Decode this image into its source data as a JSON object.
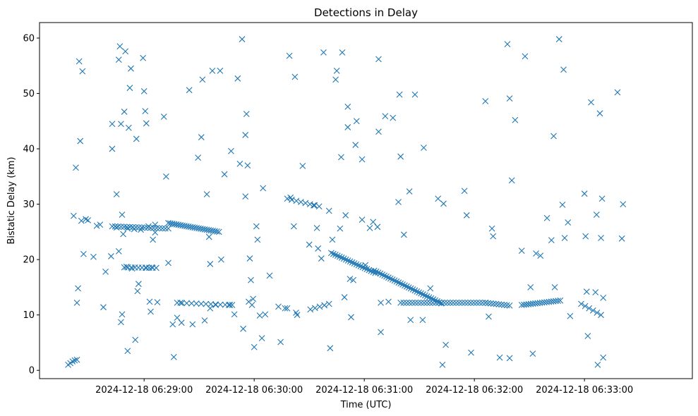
{
  "chart_data": {
    "type": "scatter",
    "title": "Detections in Delay",
    "xlabel": "Time (UTC)",
    "ylabel": "Bistatic Delay (km)",
    "marker": "x",
    "color": "#1f77b4",
    "x_unit": "minutes after 2024-12-18 06:28:00",
    "xlim": [
      27.55,
      33.48
    ],
    "ylim": [
      -1.5,
      62.8
    ],
    "xticks": [
      {
        "value": 28.5,
        "label": "2024-12-18 06:29:00"
      },
      {
        "value": 29.5,
        "label": "2024-12-18 06:30:00"
      },
      {
        "value": 30.5,
        "label": "2024-12-18 06:31:00"
      },
      {
        "value": 31.5,
        "label": "2024-12-18 06:32:00"
      },
      {
        "value": 32.5,
        "label": "2024-12-18 06:33:00"
      }
    ],
    "yticks": [
      {
        "value": 0,
        "label": "0"
      },
      {
        "value": 10,
        "label": "10"
      },
      {
        "value": 20,
        "label": "20"
      },
      {
        "value": 30,
        "label": "30"
      },
      {
        "value": 40,
        "label": "40"
      },
      {
        "value": 50,
        "label": "50"
      },
      {
        "value": 60,
        "label": "60"
      }
    ],
    "points": [
      [
        27.81,
        1.0
      ],
      [
        27.83,
        1.3
      ],
      [
        27.85,
        1.6
      ],
      [
        27.87,
        1.8
      ],
      [
        27.89,
        1.9
      ],
      [
        27.86,
        27.9
      ],
      [
        27.88,
        36.6
      ],
      [
        27.89,
        12.2
      ],
      [
        27.9,
        14.8
      ],
      [
        27.91,
        55.8
      ],
      [
        27.92,
        41.4
      ],
      [
        27.93,
        27.0
      ],
      [
        27.94,
        54.0
      ],
      [
        27.95,
        21.0
      ],
      [
        27.97,
        27.3
      ],
      [
        27.99,
        27.1
      ],
      [
        28.04,
        20.5
      ],
      [
        28.07,
        26.1
      ],
      [
        28.1,
        26.3
      ],
      [
        28.13,
        11.4
      ],
      [
        28.15,
        17.8
      ],
      [
        28.2,
        20.6
      ],
      [
        28.21,
        44.5
      ],
      [
        28.25,
        25.8
      ],
      [
        28.27,
        56.1
      ],
      [
        28.28,
        58.5
      ],
      [
        28.29,
        44.5
      ],
      [
        28.3,
        28.1
      ],
      [
        28.31,
        24.6
      ],
      [
        28.32,
        46.7
      ],
      [
        28.33,
        57.6
      ],
      [
        28.34,
        18.7
      ],
      [
        28.35,
        25.6
      ],
      [
        28.36,
        43.8
      ],
      [
        28.37,
        51.0
      ],
      [
        28.38,
        54.5
      ],
      [
        28.39,
        18.4
      ],
      [
        28.41,
        25.5
      ],
      [
        28.43,
        41.8
      ],
      [
        28.44,
        14.3
      ],
      [
        28.45,
        15.6
      ],
      [
        28.47,
        25.4
      ],
      [
        28.49,
        56.4
      ],
      [
        28.5,
        50.4
      ],
      [
        28.51,
        46.8
      ],
      [
        28.52,
        44.6
      ],
      [
        28.54,
        26.0
      ],
      [
        28.55,
        12.4
      ],
      [
        28.56,
        10.6
      ],
      [
        28.58,
        23.6
      ],
      [
        28.6,
        26.3
      ],
      [
        28.62,
        12.3
      ],
      [
        28.68,
        45.8
      ],
      [
        28.7,
        35.0
      ],
      [
        28.72,
        19.4
      ],
      [
        28.76,
        8.3
      ],
      [
        28.77,
        2.4
      ],
      [
        28.8,
        9.5
      ],
      [
        28.83,
        12.2
      ],
      [
        28.84,
        8.6
      ],
      [
        28.91,
        50.6
      ],
      [
        28.94,
        8.3
      ],
      [
        28.99,
        38.4
      ],
      [
        29.02,
        42.1
      ],
      [
        29.03,
        52.5
      ],
      [
        29.05,
        9.0
      ],
      [
        29.07,
        31.8
      ],
      [
        29.09,
        24.1
      ],
      [
        29.1,
        19.2
      ],
      [
        29.12,
        54.1
      ],
      [
        29.15,
        11.8
      ],
      [
        29.19,
        54.1
      ],
      [
        29.2,
        20.0
      ],
      [
        29.23,
        35.4
      ],
      [
        29.27,
        11.8
      ],
      [
        29.29,
        39.6
      ],
      [
        29.32,
        10.1
      ],
      [
        29.35,
        52.7
      ],
      [
        29.37,
        37.3
      ],
      [
        29.39,
        59.8
      ],
      [
        29.4,
        7.5
      ],
      [
        29.42,
        31.4
      ],
      [
        29.42,
        42.5
      ],
      [
        29.43,
        46.3
      ],
      [
        29.44,
        37.0
      ],
      [
        29.46,
        20.2
      ],
      [
        29.47,
        16.3
      ],
      [
        29.48,
        11.8
      ],
      [
        29.49,
        12.9
      ],
      [
        29.5,
        4.2
      ],
      [
        29.52,
        26.0
      ],
      [
        29.53,
        23.6
      ],
      [
        29.55,
        9.9
      ],
      [
        29.57,
        5.8
      ],
      [
        29.58,
        32.9
      ],
      [
        29.6,
        10.1
      ],
      [
        29.64,
        17.1
      ],
      [
        29.72,
        11.5
      ],
      [
        29.74,
        5.1
      ],
      [
        29.8,
        11.2
      ],
      [
        29.82,
        56.8
      ],
      [
        29.83,
        31.2
      ],
      [
        29.86,
        26.0
      ],
      [
        29.87,
        53.0
      ],
      [
        29.89,
        10.0
      ],
      [
        29.94,
        36.9
      ],
      [
        30.0,
        22.7
      ],
      [
        30.04,
        29.8
      ],
      [
        30.07,
        25.7
      ],
      [
        30.08,
        22.0
      ],
      [
        30.11,
        20.2
      ],
      [
        30.13,
        57.4
      ],
      [
        30.18,
        28.8
      ],
      [
        30.19,
        4.0
      ],
      [
        30.21,
        23.6
      ],
      [
        30.24,
        52.5
      ],
      [
        30.25,
        54.1
      ],
      [
        30.28,
        25.6
      ],
      [
        30.29,
        38.5
      ],
      [
        30.3,
        57.4
      ],
      [
        30.32,
        13.2
      ],
      [
        30.33,
        28.0
      ],
      [
        30.35,
        47.6
      ],
      [
        30.35,
        43.9
      ],
      [
        30.37,
        16.5
      ],
      [
        30.38,
        9.6
      ],
      [
        30.4,
        16.3
      ],
      [
        30.42,
        40.7
      ],
      [
        30.43,
        45.0
      ],
      [
        30.48,
        27.2
      ],
      [
        30.48,
        38.1
      ],
      [
        30.51,
        19.0
      ],
      [
        30.55,
        25.7
      ],
      [
        30.58,
        26.8
      ],
      [
        30.63,
        56.2
      ],
      [
        30.63,
        43.1
      ],
      [
        30.62,
        25.9
      ],
      [
        30.65,
        12.2
      ],
      [
        30.65,
        6.9
      ],
      [
        30.69,
        45.9
      ],
      [
        30.72,
        12.4
      ],
      [
        30.76,
        45.6
      ],
      [
        30.81,
        30.4
      ],
      [
        30.82,
        49.8
      ],
      [
        30.83,
        38.6
      ],
      [
        30.86,
        24.5
      ],
      [
        30.91,
        32.3
      ],
      [
        30.92,
        9.1
      ],
      [
        30.96,
        49.8
      ],
      [
        31.03,
        9.1
      ],
      [
        31.04,
        40.2
      ],
      [
        31.1,
        14.8
      ],
      [
        31.17,
        31.0
      ],
      [
        31.21,
        1.0
      ],
      [
        31.22,
        30.1
      ],
      [
        31.24,
        4.6
      ],
      [
        31.41,
        32.4
      ],
      [
        31.43,
        28.0
      ],
      [
        31.47,
        3.2
      ],
      [
        31.6,
        48.6
      ],
      [
        31.63,
        9.7
      ],
      [
        31.66,
        25.6
      ],
      [
        31.67,
        24.2
      ],
      [
        31.73,
        2.3
      ],
      [
        31.8,
        58.9
      ],
      [
        31.82,
        49.1
      ],
      [
        31.82,
        2.2
      ],
      [
        31.84,
        34.3
      ],
      [
        31.87,
        45.2
      ],
      [
        31.93,
        21.6
      ],
      [
        31.96,
        56.7
      ],
      [
        32.01,
        15.0
      ],
      [
        32.03,
        3.0
      ],
      [
        32.06,
        21.1
      ],
      [
        32.1,
        20.7
      ],
      [
        32.16,
        27.5
      ],
      [
        32.2,
        23.5
      ],
      [
        32.22,
        42.3
      ],
      [
        32.23,
        15.0
      ],
      [
        32.27,
        59.8
      ],
      [
        32.31,
        54.3
      ],
      [
        32.3,
        29.9
      ],
      [
        32.32,
        23.9
      ],
      [
        32.35,
        26.7
      ],
      [
        32.37,
        9.8
      ],
      [
        32.5,
        31.9
      ],
      [
        32.51,
        24.2
      ],
      [
        32.52,
        14.2
      ],
      [
        32.53,
        6.2
      ],
      [
        32.56,
        48.4
      ],
      [
        32.6,
        14.1
      ],
      [
        32.61,
        28.1
      ],
      [
        32.62,
        1.0
      ],
      [
        32.64,
        46.4
      ],
      [
        32.65,
        23.9
      ],
      [
        32.66,
        31.0
      ],
      [
        32.67,
        2.3
      ],
      [
        32.67,
        13.1
      ],
      [
        32.8,
        50.2
      ],
      [
        32.84,
        23.8
      ],
      [
        32.85,
        30.0
      ],
      [
        28.21,
        40.0
      ],
      [
        28.25,
        31.8
      ],
      [
        28.27,
        21.5
      ],
      [
        28.3,
        10.1
      ],
      [
        28.35,
        3.5
      ],
      [
        28.29,
        8.7
      ],
      [
        28.42,
        5.5
      ],
      [
        28.52,
        18.5
      ],
      [
        28.57,
        18.6
      ],
      [
        28.6,
        24.9
      ],
      [
        29.1,
        11.2
      ],
      [
        29.3,
        11.8
      ],
      [
        29.45,
        12.4
      ],
      [
        29.78,
        11.2
      ],
      [
        29.88,
        10.4
      ]
    ],
    "track_segments": [
      {
        "x0": 28.21,
        "x1": 28.72,
        "y0": 26.0,
        "y1": 25.6,
        "n": 20
      },
      {
        "x0": 28.72,
        "x1": 29.18,
        "y0": 26.6,
        "y1": 25.0,
        "n": 26
      },
      {
        "x0": 28.32,
        "x1": 28.61,
        "y0": 18.6,
        "y1": 18.5,
        "n": 10
      },
      {
        "x0": 28.8,
        "x1": 29.28,
        "y0": 12.2,
        "y1": 11.8,
        "n": 12
      },
      {
        "x0": 29.8,
        "x1": 30.09,
        "y0": 31.0,
        "y1": 29.6,
        "n": 8
      },
      {
        "x0": 30.2,
        "x1": 30.6,
        "y0": 21.2,
        "y1": 17.6,
        "n": 22
      },
      {
        "x0": 30.59,
        "x1": 31.2,
        "y0": 18.0,
        "y1": 12.1,
        "n": 34
      },
      {
        "x0": 30.83,
        "x1": 31.6,
        "y0": 12.2,
        "y1": 12.2,
        "n": 30
      },
      {
        "x0": 31.6,
        "x1": 31.82,
        "y0": 12.2,
        "y1": 11.7,
        "n": 10
      },
      {
        "x0": 31.93,
        "x1": 32.28,
        "y0": 11.8,
        "y1": 12.6,
        "n": 18
      },
      {
        "x0": 30.01,
        "x1": 30.18,
        "y0": 11.0,
        "y1": 12.0,
        "n": 5
      },
      {
        "x0": 32.47,
        "x1": 32.65,
        "y0": 12.0,
        "y1": 10.0,
        "n": 6
      }
    ]
  }
}
